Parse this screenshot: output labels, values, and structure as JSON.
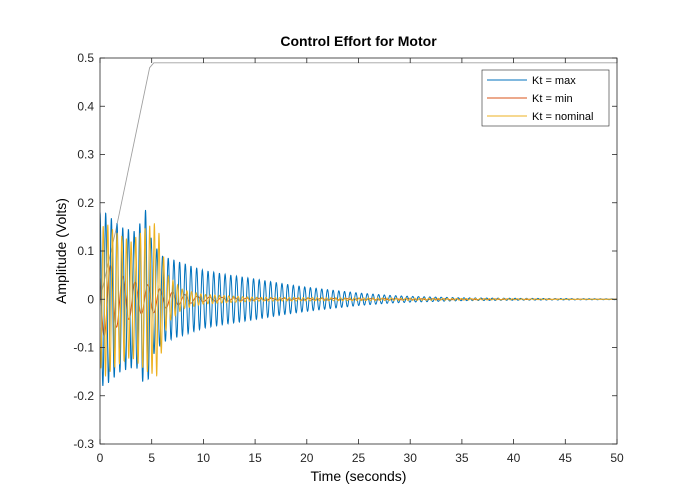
{
  "chart_data": {
    "type": "line",
    "title": "Control Effort for Motor",
    "xlabel": "Time (seconds)",
    "ylabel": "Amplitude (Volts)",
    "xlim": [
      0,
      50
    ],
    "ylim": [
      -0.3,
      0.5
    ],
    "xticks": [
      0,
      5,
      10,
      15,
      20,
      25,
      30,
      35,
      40,
      45,
      50
    ],
    "yticks": [
      -0.3,
      -0.2,
      -0.1,
      0,
      0.1,
      0.2,
      0.3,
      0.4,
      0.5
    ],
    "grid": false,
    "legend_position": "top-right",
    "series": [
      {
        "name": "Kt = max",
        "color": "#0072BD",
        "kind": "decaying-oscillation",
        "envelope_t": [
          0,
          0.5,
          2,
          3.5,
          4.5,
          5,
          6,
          8,
          10,
          12,
          15,
          18,
          20,
          22,
          25,
          28,
          30,
          35,
          40,
          50
        ],
        "envelope_amp": [
          0.18,
          0.18,
          0.15,
          0.14,
          0.19,
          0.12,
          0.09,
          0.075,
          0.06,
          0.052,
          0.042,
          0.031,
          0.025,
          0.02,
          0.013,
          0.008,
          0.006,
          0.003,
          0.002,
          0.0008
        ],
        "period": 0.55
      },
      {
        "name": "Kt = min",
        "color": "#D95319",
        "kind": "decaying-oscillation",
        "envelope_t": [
          0,
          1,
          2,
          3,
          4,
          5,
          6,
          8,
          10,
          15,
          50
        ],
        "envelope_amp": [
          0.08,
          0.07,
          0.05,
          0.04,
          0.03,
          0.03,
          0.02,
          0.01,
          0.005,
          0.002,
          0.0
        ],
        "period": 1.2
      },
      {
        "name": "Kt = nominal",
        "color": "#EDB120",
        "kind": "decaying-oscillation",
        "envelope_t": [
          0,
          0.5,
          1.5,
          3,
          4.5,
          5.5,
          6.5,
          8,
          10,
          15,
          50
        ],
        "envelope_amp": [
          0.14,
          0.16,
          0.14,
          0.12,
          0.15,
          0.16,
          0.05,
          0.02,
          0.01,
          0.004,
          0.0
        ],
        "period": 0.45
      },
      {
        "color": "#A0A0A0",
        "kind": "ramp",
        "x": [
          0,
          1.5,
          4.8,
          5.2,
          50
        ],
        "y": [
          0,
          0.14,
          0.48,
          0.49,
          0.49
        ]
      }
    ]
  }
}
